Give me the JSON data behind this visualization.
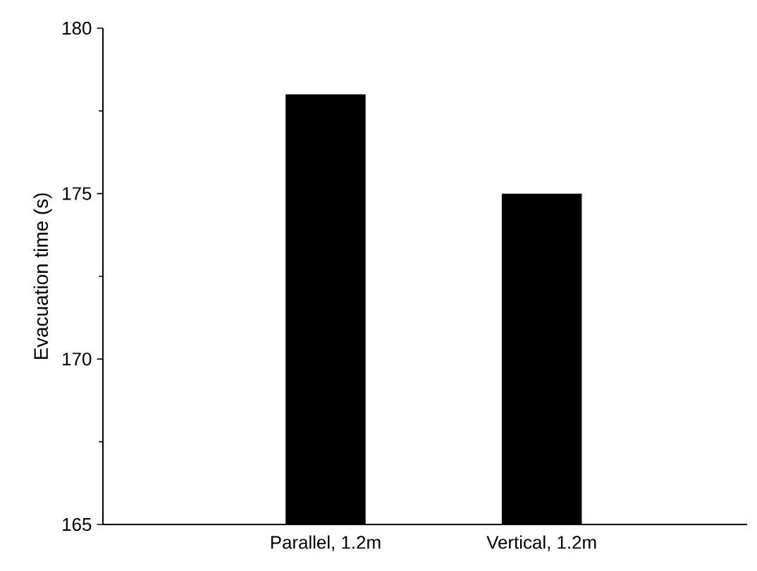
{
  "chart_data": {
    "type": "bar",
    "ylabel": "Evacuation time (s)",
    "categories": [
      "Parallel, 1.2m",
      "Vertical, 1.2m"
    ],
    "values": [
      178,
      175
    ],
    "color": "#000000",
    "ylim": [
      165,
      180
    ],
    "yticks": [
      165,
      170,
      175,
      180
    ]
  }
}
